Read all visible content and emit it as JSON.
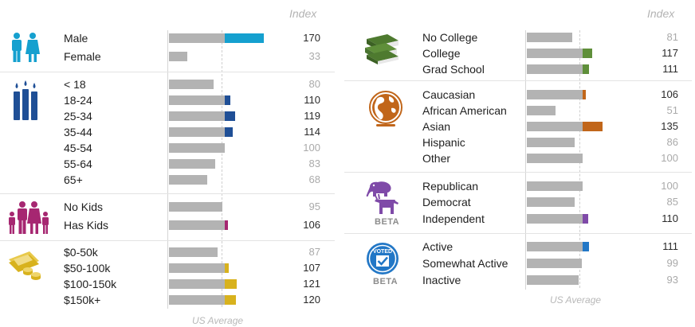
{
  "index_label": "Index",
  "us_average_label": "US Average",
  "beta_label": "BETA",
  "colors": {
    "gender": "#15a0cf",
    "age": "#1f4f96",
    "kids": "#a62771",
    "income": "#d8b21d",
    "education": "#5f8f3a",
    "ethnicity": "#c1661a",
    "politics": "#7f4aa8",
    "voting": "#2277c6",
    "base": "#b3b3b3"
  },
  "chart_data": {
    "type": "bar",
    "baseline": 100,
    "xlim": [
      0,
      200
    ],
    "groups": [
      {
        "name": "Gender",
        "icon": "gender-icon",
        "categories": [
          "Male",
          "Female"
        ],
        "values": [
          170,
          33
        ]
      },
      {
        "name": "Age",
        "icon": "candles-icon",
        "categories": [
          "< 18",
          "18-24",
          "25-34",
          "35-44",
          "45-54",
          "55-64",
          "65+"
        ],
        "values": [
          80,
          110,
          119,
          114,
          100,
          83,
          68
        ]
      },
      {
        "name": "Kids",
        "icon": "family-icon",
        "categories": [
          "No Kids",
          "Has Kids"
        ],
        "values": [
          95,
          106
        ]
      },
      {
        "name": "Income",
        "icon": "money-icon",
        "categories": [
          "$0-50k",
          "$50-100k",
          "$100-150k",
          "$150k+"
        ],
        "values": [
          87,
          107,
          121,
          120
        ]
      },
      {
        "name": "Education",
        "icon": "books-icon",
        "categories": [
          "No College",
          "College",
          "Grad School"
        ],
        "values": [
          81,
          117,
          111
        ]
      },
      {
        "name": "Ethnicity",
        "icon": "globe-icon",
        "categories": [
          "Caucasian",
          "African American",
          "Asian",
          "Hispanic",
          "Other"
        ],
        "values": [
          106,
          51,
          135,
          86,
          100
        ]
      },
      {
        "name": "Politics",
        "icon": "elephant-donkey-icon",
        "categories": [
          "Republican",
          "Democrat",
          "Independent"
        ],
        "values": [
          100,
          85,
          110
        ]
      },
      {
        "name": "Voting",
        "icon": "voted-badge-icon",
        "categories": [
          "Active",
          "Somewhat Active",
          "Inactive"
        ],
        "values": [
          111,
          99,
          93
        ]
      }
    ]
  }
}
